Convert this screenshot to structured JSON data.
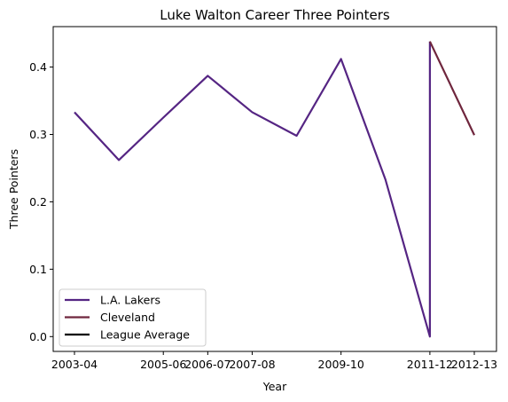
{
  "chart_data": {
    "type": "line",
    "title": "Luke Walton Career Three Pointers",
    "xlabel": "Year",
    "ylabel": "Three Pointers",
    "x_ticks": [
      "2003-04",
      "2005-06",
      "2006-07",
      "2007-08",
      "2009-10",
      "2011-12",
      "2012-13"
    ],
    "ylim": [
      -0.022,
      0.46
    ],
    "y_ticks": [
      0.0,
      0.1,
      0.2,
      0.3,
      0.4
    ],
    "grid": false,
    "legend_position": "lower-left",
    "series": [
      {
        "name": "L.A. Lakers",
        "color": "#552583",
        "points": [
          {
            "x": "2003-04",
            "y": 0.333
          },
          {
            "x": "2004-05",
            "y": 0.262
          },
          {
            "x": "2005-06",
            "y": 0.325
          },
          {
            "x": "2006-07",
            "y": 0.387
          },
          {
            "x": "2007-08",
            "y": 0.333
          },
          {
            "x": "2008-09",
            "y": 0.298
          },
          {
            "x": "2009-10",
            "y": 0.412
          },
          {
            "x": "2010-11",
            "y": 0.233
          },
          {
            "x": "2011-12",
            "y": 0.0
          },
          {
            "x": "2011-12",
            "y": 0.438
          }
        ]
      },
      {
        "name": "Cleveland",
        "color": "#6F263D",
        "points": [
          {
            "x": "2011-12",
            "y": 0.438
          },
          {
            "x": "2012-13",
            "y": 0.299
          }
        ]
      },
      {
        "name": "League Average",
        "color": "#000000",
        "points": []
      }
    ]
  }
}
